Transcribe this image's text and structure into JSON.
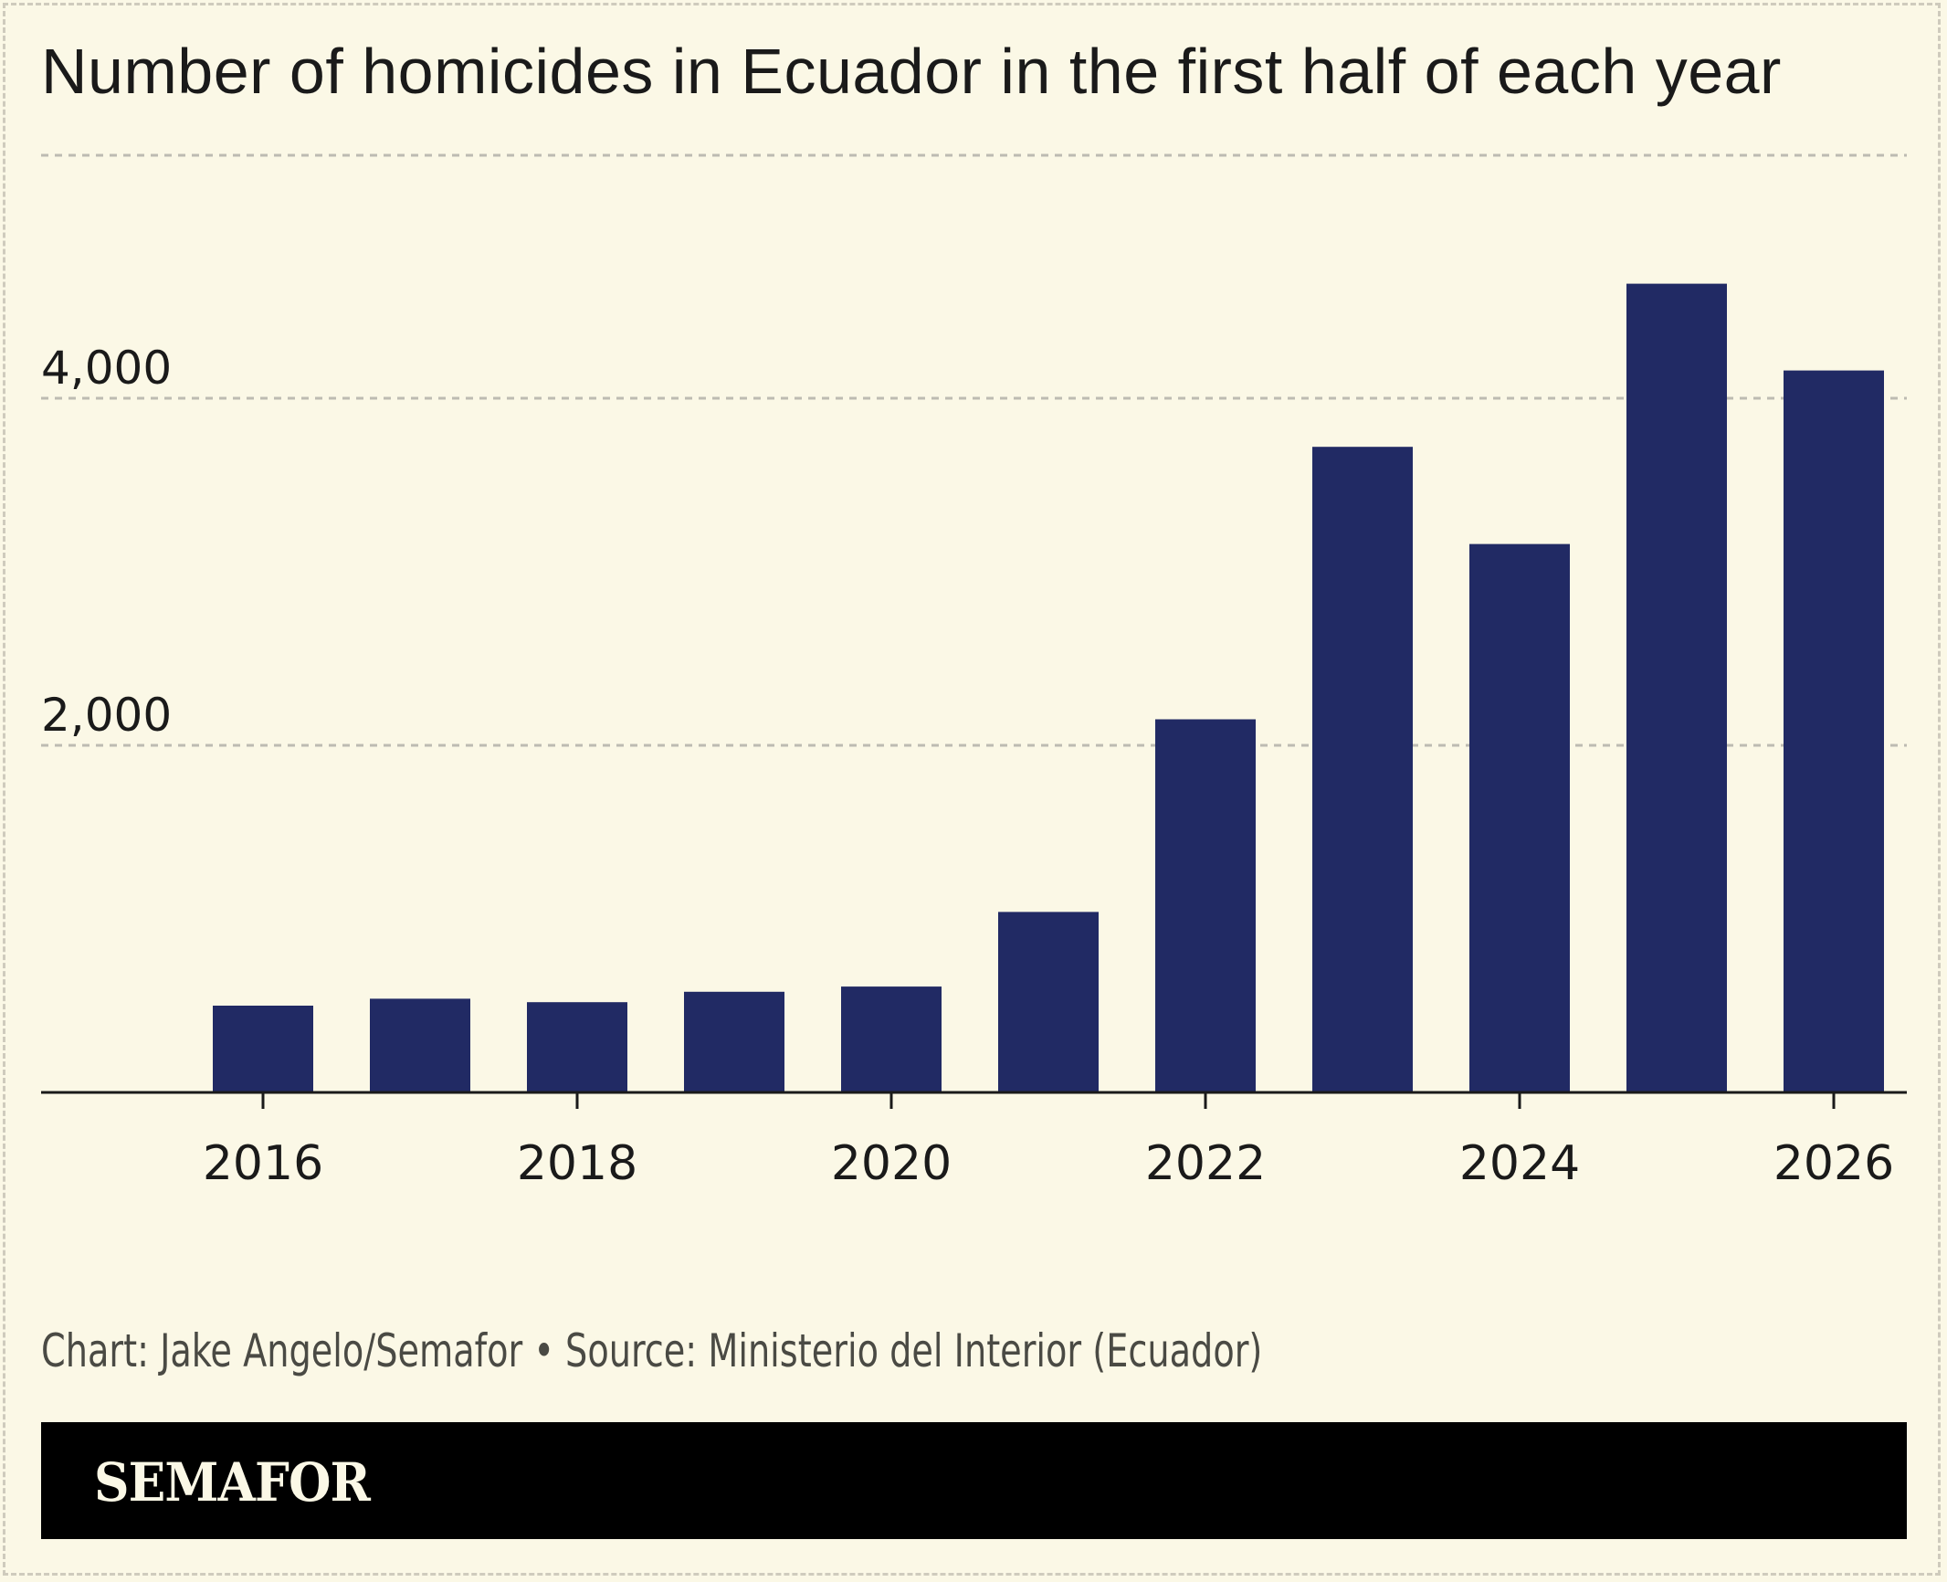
{
  "title": "Number of homicides in Ecuador in the first half of each year",
  "credit": "Chart: Jake Angelo/Semafor • Source: Ministerio del Interior (Ecuador)",
  "brand": "SEMAFOR",
  "colors": {
    "background": "#fbf8e6",
    "bar": "#212a64",
    "grid": "#bdbbb2",
    "axis": "#1a1a1a",
    "text": "#1a1a1a",
    "brand_bar": "#000000"
  },
  "chart_data": {
    "type": "bar",
    "title": "Number of homicides in Ecuador in the first half of each year",
    "xlabel": "",
    "ylabel": "",
    "x": [
      2016,
      2017,
      2018,
      2019,
      2020,
      2021,
      2022,
      2023,
      2024,
      2025,
      2026
    ],
    "values": [
      500,
      540,
      520,
      580,
      610,
      1040,
      2150,
      3720,
      3160,
      4660,
      4160
    ],
    "x_ticks": [
      "2016",
      "2018",
      "2020",
      "2022",
      "2024",
      "2026"
    ],
    "x_tick_values": [
      2016,
      2018,
      2020,
      2022,
      2024,
      2026
    ],
    "y_ticks": [
      "4,000",
      "2,000"
    ],
    "y_tick_values": [
      4000,
      2000
    ],
    "ylim": [
      0,
      5400
    ],
    "grid": true,
    "legend": "none"
  }
}
